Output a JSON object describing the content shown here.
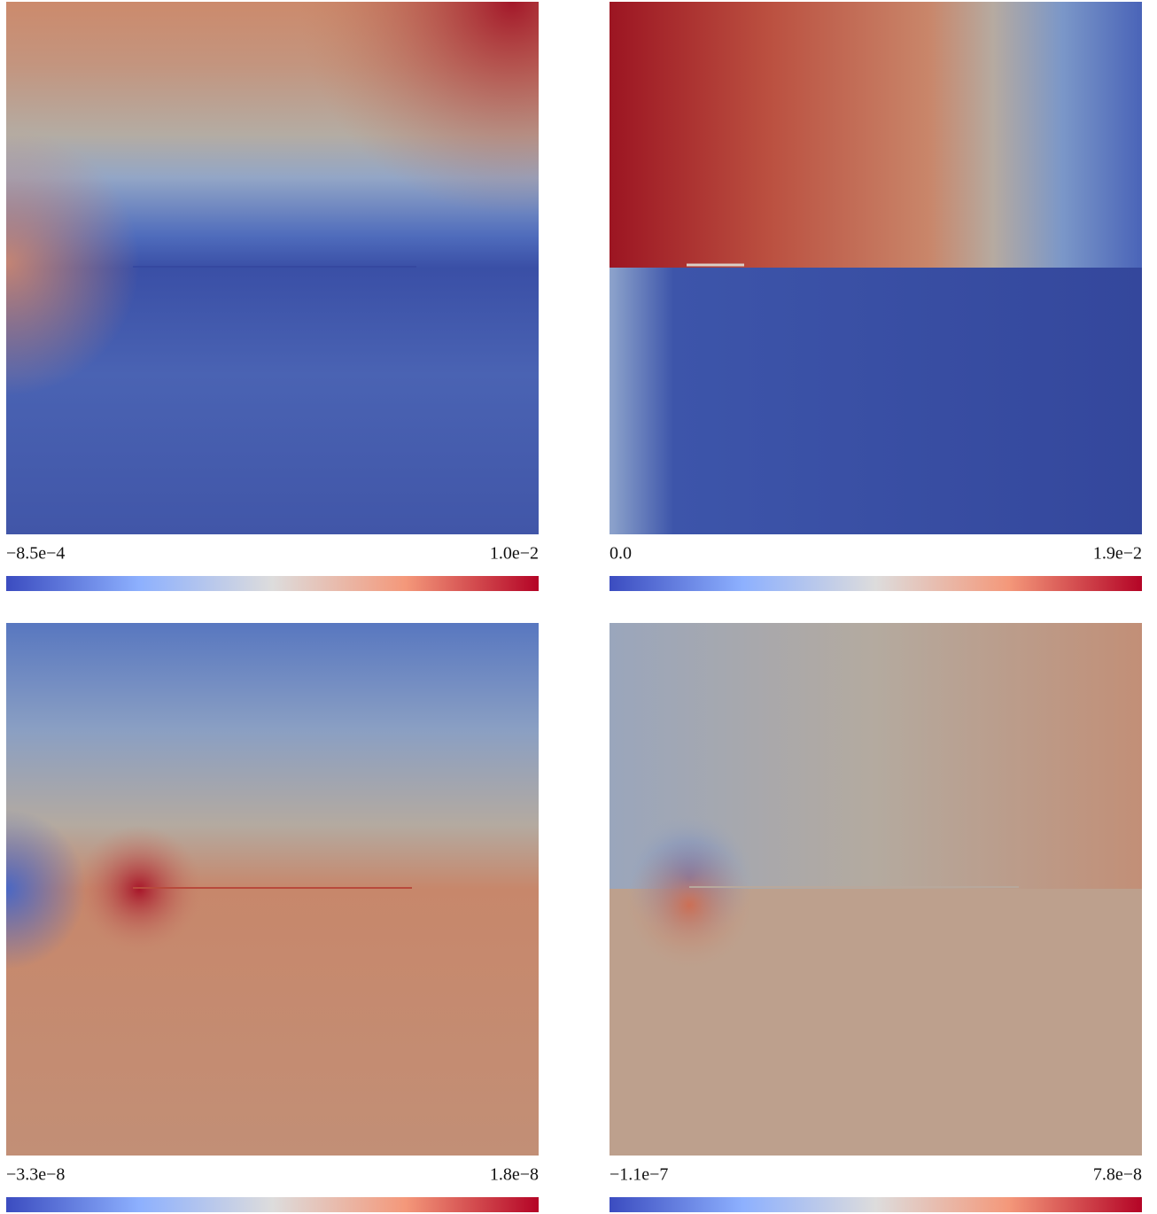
{
  "panels": [
    {
      "min_label": "−8.5e−4",
      "max_label": "1.0e−2"
    },
    {
      "min_label": "0.0",
      "max_label": "1.9e−2"
    },
    {
      "min_label": "−3.3e−8",
      "max_label": "1.8e−8"
    },
    {
      "min_label": "−1.1e−7",
      "max_label": "7.8e−8"
    }
  ]
}
